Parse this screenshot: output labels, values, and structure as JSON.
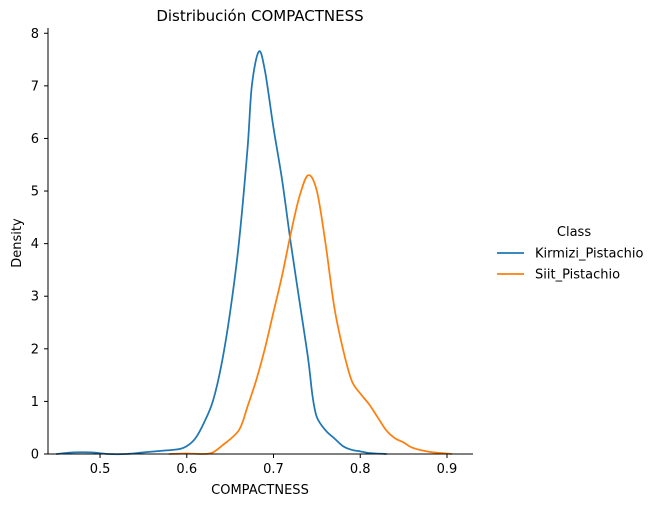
{
  "chart_data": {
    "type": "line",
    "title": "Distribución COMPACTNESS",
    "xlabel": "COMPACTNESS",
    "ylabel": "Density",
    "xlim": [
      0.44,
      0.93
    ],
    "ylim": [
      0,
      8.1
    ],
    "x_ticks": [
      0.5,
      0.6,
      0.7,
      0.8,
      0.9
    ],
    "x_tick_labels": [
      "0.5",
      "0.6",
      "0.7",
      "0.8",
      "0.9"
    ],
    "y_ticks": [
      0,
      1,
      2,
      3,
      4,
      5,
      6,
      7,
      8
    ],
    "y_tick_labels": [
      "0",
      "1",
      "2",
      "3",
      "4",
      "5",
      "6",
      "7",
      "8"
    ],
    "grid": false,
    "legend": {
      "title": "Class",
      "placement": "right outside"
    },
    "series": [
      {
        "name": "Kirmizi_Pistachio",
        "color": "#1f77b4",
        "points": [
          [
            0.45,
            0.0
          ],
          [
            0.47,
            0.03
          ],
          [
            0.49,
            0.03
          ],
          [
            0.51,
            0.0
          ],
          [
            0.53,
            0.0
          ],
          [
            0.55,
            0.03
          ],
          [
            0.57,
            0.06
          ],
          [
            0.59,
            0.09
          ],
          [
            0.6,
            0.15
          ],
          [
            0.61,
            0.3
          ],
          [
            0.62,
            0.6
          ],
          [
            0.63,
            1.0
          ],
          [
            0.64,
            1.7
          ],
          [
            0.65,
            2.7
          ],
          [
            0.66,
            4.0
          ],
          [
            0.67,
            5.8
          ],
          [
            0.675,
            7.0
          ],
          [
            0.683,
            7.65
          ],
          [
            0.69,
            7.3
          ],
          [
            0.7,
            6.2
          ],
          [
            0.71,
            5.2
          ],
          [
            0.72,
            4.0
          ],
          [
            0.73,
            2.9
          ],
          [
            0.74,
            1.8
          ],
          [
            0.745,
            1.1
          ],
          [
            0.75,
            0.7
          ],
          [
            0.76,
            0.45
          ],
          [
            0.77,
            0.3
          ],
          [
            0.78,
            0.15
          ],
          [
            0.79,
            0.08
          ],
          [
            0.8,
            0.05
          ],
          [
            0.81,
            0.02
          ],
          [
            0.83,
            0.0
          ]
        ]
      },
      {
        "name": "Siit_Pistachio",
        "color": "#ff7f0e",
        "points": [
          [
            0.58,
            0.0
          ],
          [
            0.6,
            0.01
          ],
          [
            0.62,
            0.0
          ],
          [
            0.63,
            0.03
          ],
          [
            0.64,
            0.15
          ],
          [
            0.66,
            0.45
          ],
          [
            0.67,
            0.9
          ],
          [
            0.68,
            1.4
          ],
          [
            0.69,
            2.0
          ],
          [
            0.7,
            2.7
          ],
          [
            0.71,
            3.4
          ],
          [
            0.72,
            4.2
          ],
          [
            0.73,
            4.9
          ],
          [
            0.74,
            5.3
          ],
          [
            0.75,
            5.0
          ],
          [
            0.76,
            4.0
          ],
          [
            0.77,
            2.8
          ],
          [
            0.78,
            2.0
          ],
          [
            0.79,
            1.4
          ],
          [
            0.8,
            1.15
          ],
          [
            0.81,
            0.95
          ],
          [
            0.82,
            0.7
          ],
          [
            0.83,
            0.45
          ],
          [
            0.84,
            0.3
          ],
          [
            0.85,
            0.22
          ],
          [
            0.86,
            0.12
          ],
          [
            0.88,
            0.04
          ],
          [
            0.9,
            0.01
          ],
          [
            0.905,
            0.0
          ]
        ]
      }
    ]
  }
}
